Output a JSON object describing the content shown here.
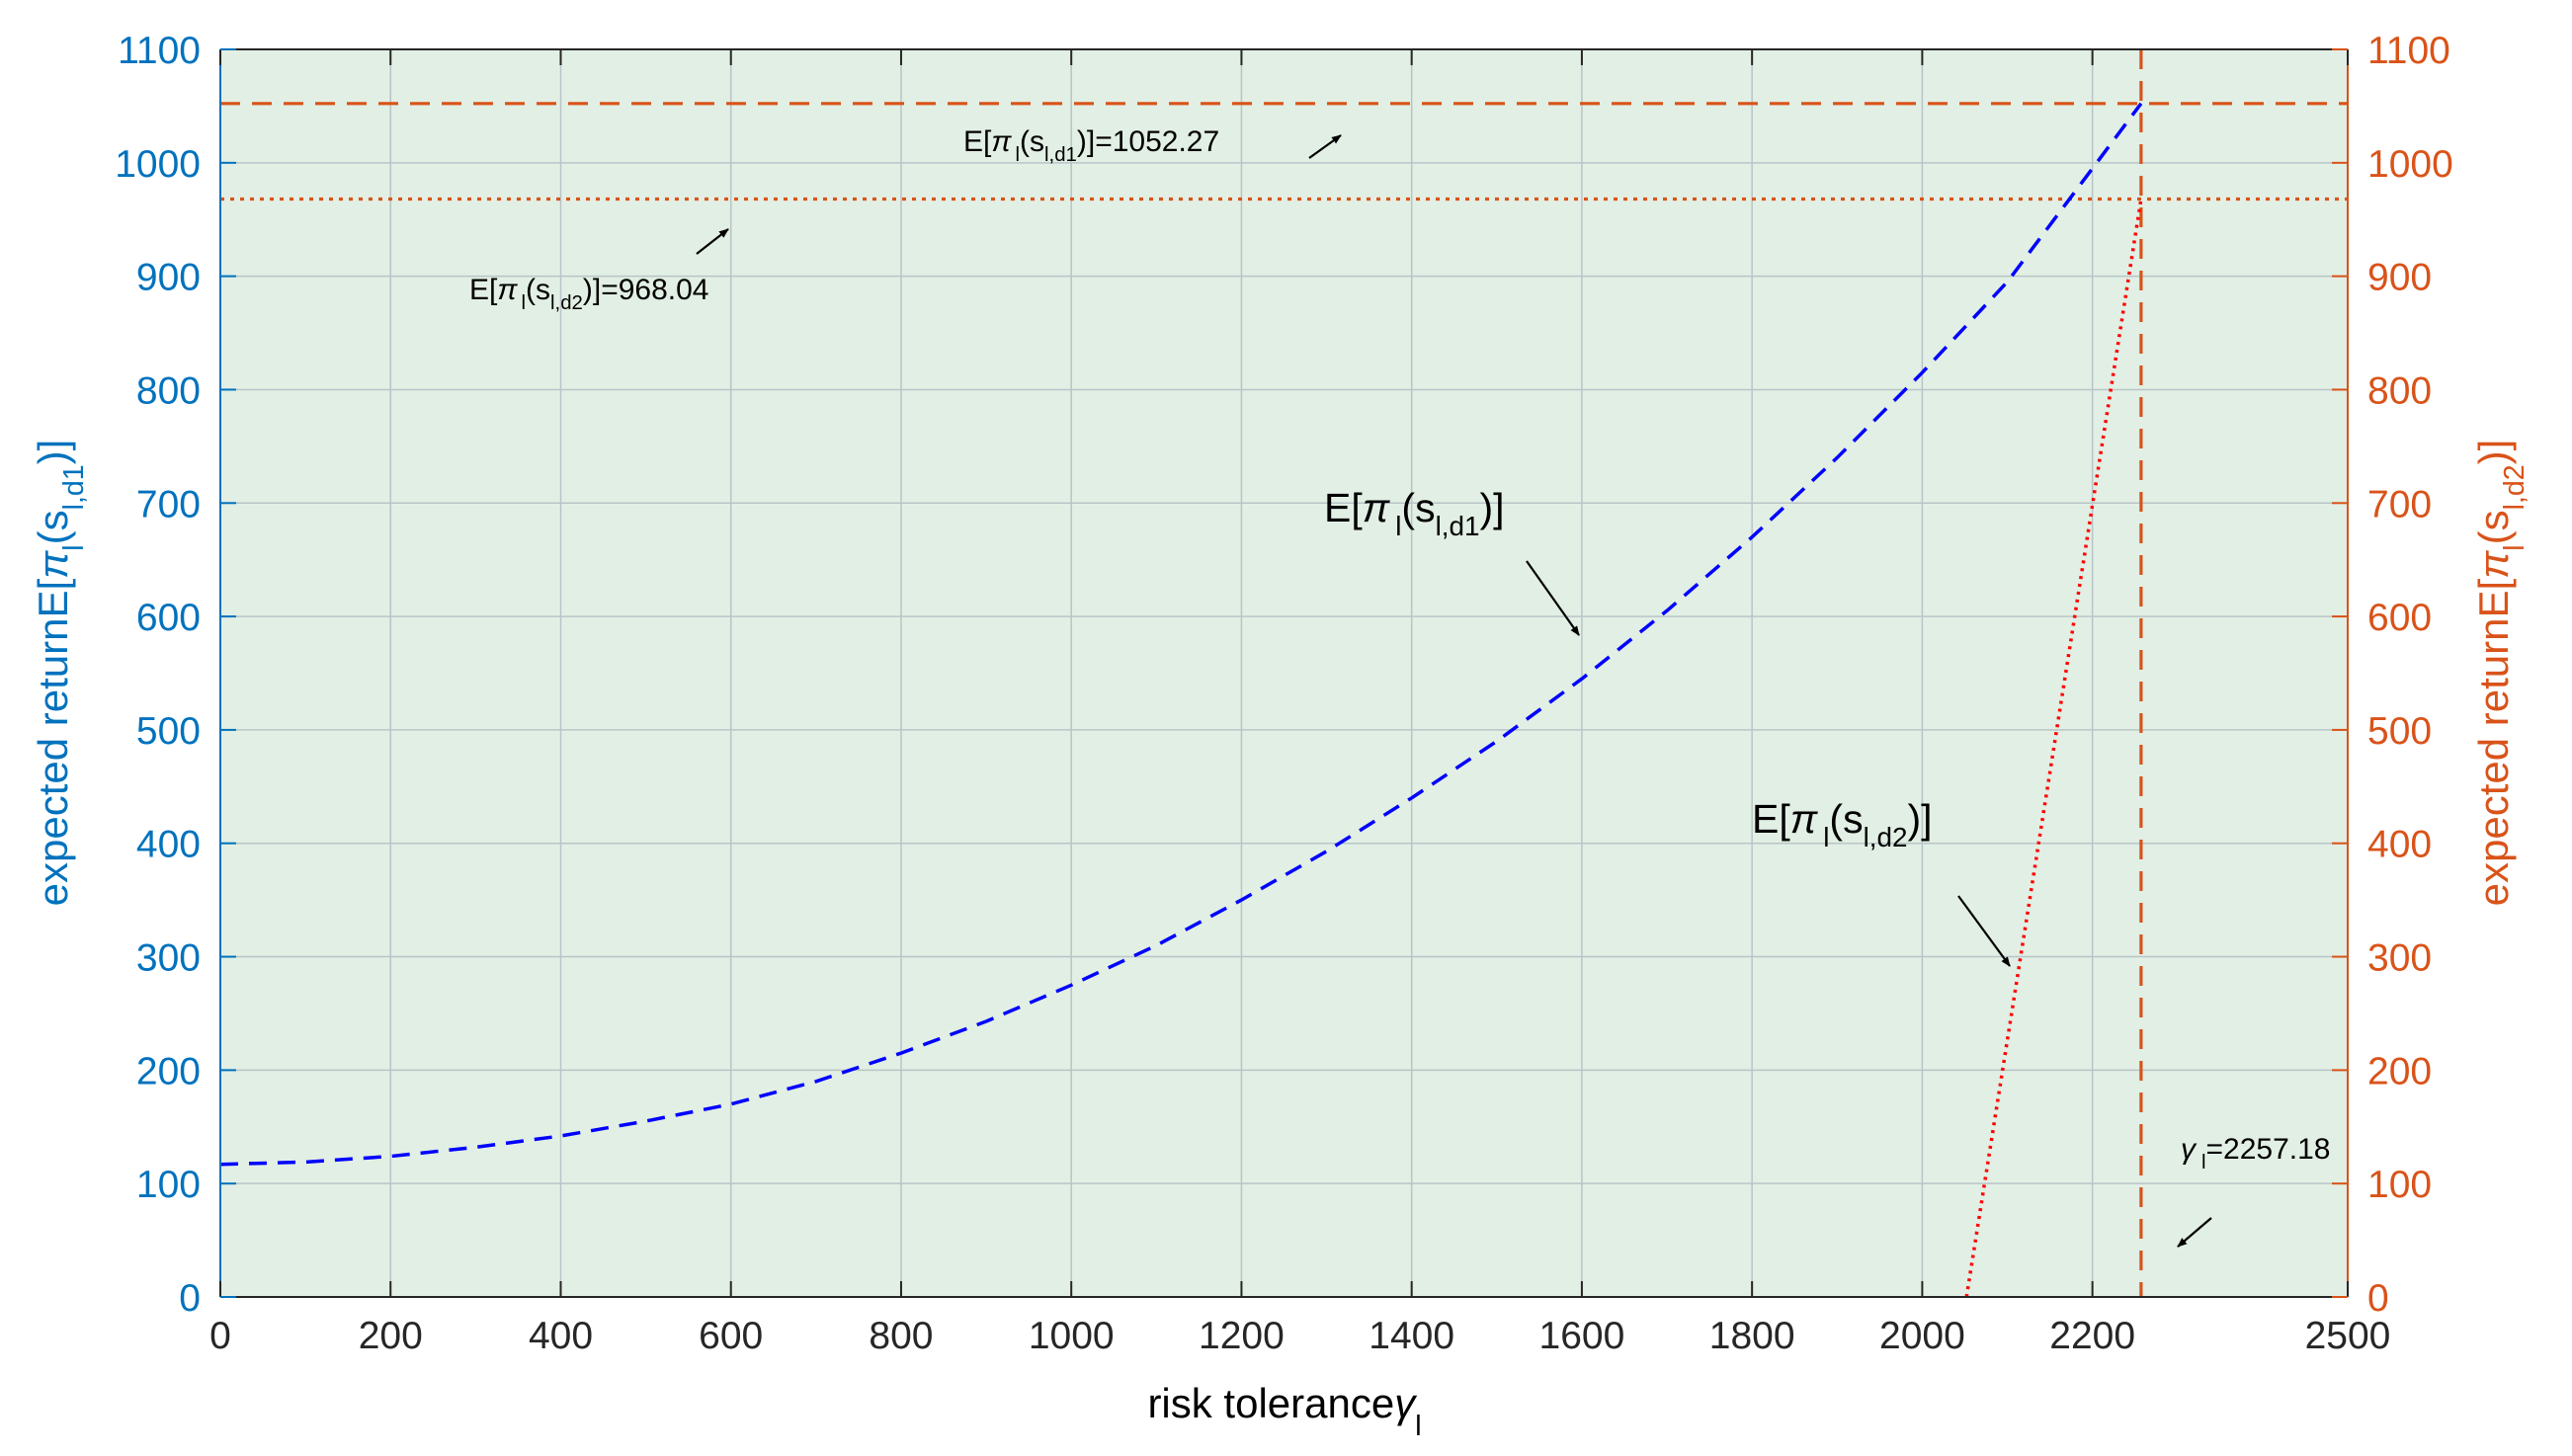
{
  "colors": {
    "left_axis": "#0072BD",
    "right_axis": "#D95319",
    "plot_background": "#E2EFE4",
    "grid": "#B8C4C8",
    "curve_d1": "#0000FF",
    "curve_d2": "#FF0000",
    "reference_lines": "#D95319"
  },
  "chart_data": {
    "type": "line",
    "xlim": [
      0,
      2500
    ],
    "ylim_left": [
      0,
      1100
    ],
    "ylim_right": [
      0,
      1100
    ],
    "grid": true,
    "x_ticks": [
      0,
      200,
      400,
      600,
      800,
      1000,
      1200,
      1400,
      1600,
      1800,
      2000,
      2200,
      2500
    ],
    "y_ticks": [
      0,
      100,
      200,
      300,
      400,
      500,
      600,
      700,
      800,
      900,
      1000,
      1100
    ],
    "x_tick_labels": [
      "0",
      "200",
      "400",
      "600",
      "800",
      "1000",
      "1200",
      "1400",
      "1600",
      "1800",
      "2000",
      "2200",
      "2500"
    ],
    "y_tick_labels": [
      "0",
      "100",
      "200",
      "300",
      "400",
      "500",
      "600",
      "700",
      "800",
      "900",
      "1000",
      "1100"
    ],
    "xlabel": {
      "main": "risk tolerance",
      "greek": "γ",
      "sub": "l"
    },
    "ylabel_left": {
      "main": "expected returnE[",
      "greek": "π",
      "sub1": "l",
      "mid": "(s",
      "sub2": "l,d1",
      "tail": ")]"
    },
    "ylabel_right": {
      "main": "expected returnE[",
      "greek": "π",
      "sub1": "l",
      "mid": "(s",
      "sub2": "l,d2",
      "tail": ")]"
    },
    "series": [
      {
        "axis": "left",
        "style": "dashed",
        "x": [
          0,
          100,
          200,
          300,
          400,
          500,
          600,
          700,
          800,
          900,
          1000,
          1100,
          1200,
          1300,
          1400,
          1500,
          1600,
          1700,
          1800,
          1900,
          2000,
          2100,
          2200,
          2257.18
        ],
        "y": [
          117,
          119,
          124,
          132,
          142,
          155,
          170,
          190,
          215,
          243,
          275,
          310,
          350,
          393,
          440,
          490,
          545,
          605,
          670,
          740,
          815,
          895,
          995,
          1052.27
        ]
      },
      {
        "axis": "right",
        "style": "dotted",
        "x": [
          2052,
          2257.18
        ],
        "y": [
          0,
          968.04
        ]
      }
    ],
    "reference_lines": [
      {
        "orientation": "horizontal",
        "value": 1052.27,
        "style": "dashed"
      },
      {
        "orientation": "horizontal",
        "value": 968.04,
        "style": "dotted"
      },
      {
        "orientation": "vertical",
        "value": 2257.18,
        "style": "dashed"
      }
    ],
    "annotations": [
      {
        "id": "d1_max",
        "prefix": "E[",
        "greek": "π",
        "s1": "l",
        "mid": "(s",
        "s2": "l,d1",
        "tail": ")]=1052.27"
      },
      {
        "id": "d2_max",
        "prefix": "E[",
        "greek": "π",
        "s1": "l",
        "mid": "(s",
        "s2": "l,d2",
        "tail": ")]=968.04"
      },
      {
        "id": "curve_d1",
        "prefix": "E[",
        "greek": "π",
        "s1": "l",
        "mid": "(s",
        "s2": "l,d1",
        "tail": ")]"
      },
      {
        "id": "curve_d2",
        "prefix": "E[",
        "greek": "π",
        "s1": "l",
        "mid": "(s",
        "s2": "l,d2",
        "tail": ")]"
      },
      {
        "id": "gamma",
        "greek": "γ",
        "s1": "l",
        "tail": "=2257.18"
      }
    ]
  }
}
